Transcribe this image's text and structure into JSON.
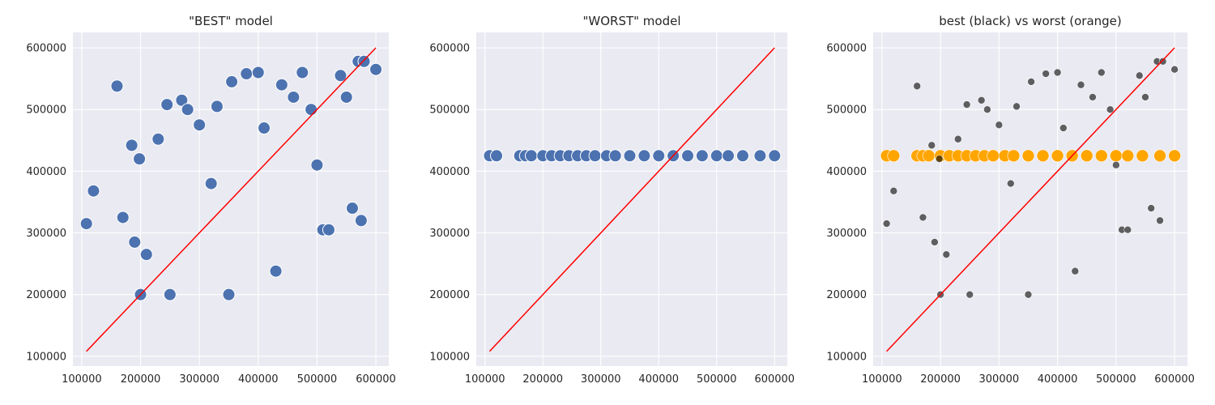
{
  "chart_data": [
    {
      "type": "scatter",
      "title": "\"BEST\" model",
      "xlim": [
        85000,
        622000
      ],
      "ylim": [
        84000,
        625000
      ],
      "xticks": [
        100000,
        200000,
        300000,
        400000,
        500000,
        600000
      ],
      "yticks": [
        100000,
        200000,
        300000,
        400000,
        500000,
        600000
      ],
      "grid": true,
      "series": [
        {
          "color": "#4c72b0",
          "x": [
            108000,
            120000,
            160000,
            170000,
            185000,
            190000,
            198000,
            200000,
            210000,
            230000,
            245000,
            250000,
            270000,
            280000,
            300000,
            320000,
            330000,
            350000,
            355000,
            380000,
            400000,
            410000,
            430000,
            440000,
            460000,
            475000,
            490000,
            500000,
            510000,
            520000,
            540000,
            550000,
            560000,
            570000,
            575000,
            580000,
            600000
          ],
          "y": [
            315000,
            368000,
            538000,
            325000,
            442000,
            285000,
            420000,
            200000,
            265000,
            452000,
            508000,
            200000,
            515000,
            500000,
            475000,
            380000,
            505000,
            200000,
            545000,
            558000,
            560000,
            470000,
            238000,
            540000,
            520000,
            560000,
            500000,
            410000,
            305000,
            305000,
            555000,
            520000,
            340000,
            578000,
            320000,
            578000,
            565000
          ]
        }
      ],
      "identity_line": {
        "from": 108000,
        "to": 600000,
        "color": "#ff0000"
      }
    },
    {
      "type": "scatter",
      "title": "\"WORST\" model",
      "xlim": [
        85000,
        622000
      ],
      "ylim": [
        84000,
        625000
      ],
      "xticks": [
        100000,
        200000,
        300000,
        400000,
        500000,
        600000
      ],
      "yticks": [
        100000,
        200000,
        300000,
        400000,
        500000,
        600000
      ],
      "grid": true,
      "series": [
        {
          "color": "#4c72b0",
          "x": [
            108000,
            120000,
            160000,
            170000,
            180000,
            200000,
            215000,
            230000,
            245000,
            260000,
            275000,
            290000,
            310000,
            325000,
            350000,
            375000,
            400000,
            425000,
            450000,
            475000,
            500000,
            520000,
            545000,
            575000,
            600000
          ],
          "y": [
            425000,
            425000,
            425000,
            425000,
            425000,
            425000,
            425000,
            425000,
            425000,
            425000,
            425000,
            425000,
            425000,
            425000,
            425000,
            425000,
            425000,
            425000,
            425000,
            425000,
            425000,
            425000,
            425000,
            425000,
            425000
          ]
        }
      ],
      "identity_line": {
        "from": 108000,
        "to": 600000,
        "color": "#ff0000"
      }
    },
    {
      "type": "scatter",
      "title": "best (black) vs worst (orange)",
      "xlim": [
        85000,
        622000
      ],
      "ylim": [
        84000,
        625000
      ],
      "xticks": [
        100000,
        200000,
        300000,
        400000,
        500000,
        600000
      ],
      "yticks": [
        100000,
        200000,
        300000,
        400000,
        500000,
        600000
      ],
      "grid": true,
      "series": [
        {
          "color": "#ffa500",
          "x": [
            108000,
            120000,
            160000,
            170000,
            180000,
            200000,
            215000,
            230000,
            245000,
            260000,
            275000,
            290000,
            310000,
            325000,
            350000,
            375000,
            400000,
            425000,
            450000,
            475000,
            500000,
            520000,
            545000,
            575000,
            600000
          ],
          "y": [
            425000,
            425000,
            425000,
            425000,
            425000,
            425000,
            425000,
            425000,
            425000,
            425000,
            425000,
            425000,
            425000,
            425000,
            425000,
            425000,
            425000,
            425000,
            425000,
            425000,
            425000,
            425000,
            425000,
            425000,
            425000
          ]
        },
        {
          "color": "#000000",
          "x": [
            108000,
            120000,
            160000,
            170000,
            185000,
            190000,
            198000,
            200000,
            210000,
            230000,
            245000,
            250000,
            270000,
            280000,
            300000,
            320000,
            330000,
            350000,
            355000,
            380000,
            400000,
            410000,
            430000,
            440000,
            460000,
            475000,
            490000,
            500000,
            510000,
            520000,
            540000,
            550000,
            560000,
            570000,
            575000,
            580000,
            600000
          ],
          "y": [
            315000,
            368000,
            538000,
            325000,
            442000,
            285000,
            420000,
            200000,
            265000,
            452000,
            508000,
            200000,
            515000,
            500000,
            475000,
            380000,
            505000,
            200000,
            545000,
            558000,
            560000,
            470000,
            238000,
            540000,
            520000,
            560000,
            500000,
            410000,
            305000,
            305000,
            555000,
            520000,
            340000,
            578000,
            320000,
            578000,
            565000
          ]
        }
      ],
      "identity_line": {
        "from": 108000,
        "to": 600000,
        "color": "#ff0000"
      }
    }
  ]
}
